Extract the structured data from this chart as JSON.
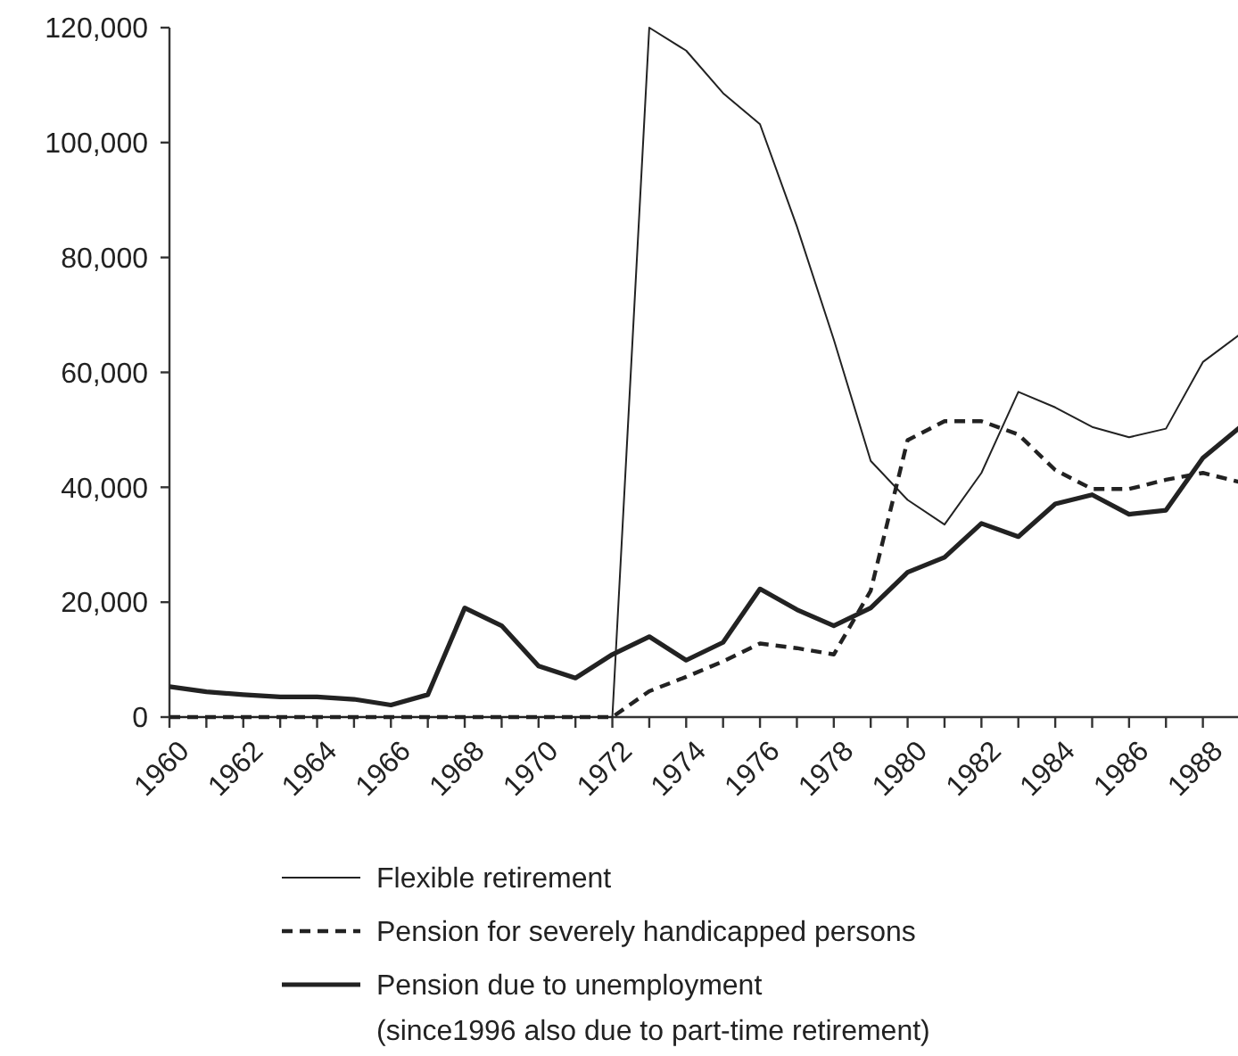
{
  "chart_data": {
    "type": "line",
    "x": [
      1960,
      1961,
      1962,
      1963,
      1964,
      1965,
      1966,
      1967,
      1968,
      1969,
      1970,
      1971,
      1972,
      1973,
      1974,
      1975,
      1976,
      1977,
      1978,
      1979,
      1980,
      1981,
      1982,
      1983,
      1984,
      1985,
      1986,
      1987,
      1988,
      1989
    ],
    "series": [
      {
        "name": "Flexible retirement",
        "color": "#222222",
        "line_style": "solid",
        "values": [
          0,
          0,
          0,
          0,
          0,
          0,
          0,
          0,
          0,
          0,
          0,
          0,
          0,
          120000,
          116000,
          108600,
          103200,
          85400,
          65700,
          44600,
          37800,
          33500,
          42500,
          56600,
          53900,
          50500,
          48700,
          50200,
          61800,
          66600
        ]
      },
      {
        "name": "Pension for severely handicapped persons",
        "color": "#222222",
        "line_style": "dashed",
        "values": [
          0,
          0,
          0,
          0,
          0,
          0,
          0,
          0,
          0,
          0,
          0,
          0,
          0,
          4500,
          7000,
          9700,
          12800,
          12000,
          10900,
          22000,
          48200,
          51500,
          51500,
          49200,
          43000,
          39700,
          39700,
          41300,
          42500,
          40900
        ]
      },
      {
        "name": "Pension due to unemployment\n(since1996 also due to part-time retirement)",
        "color": "#222222",
        "line_style": "solid",
        "values": [
          5300,
          4400,
          3900,
          3500,
          3500,
          3100,
          2100,
          3900,
          19000,
          15900,
          8900,
          6800,
          10900,
          14000,
          9900,
          13000,
          22300,
          18700,
          15900,
          19000,
          25200,
          27800,
          33700,
          31400,
          37100,
          38700,
          35300,
          36000,
          45100,
          50400
        ]
      }
    ],
    "xlim": [
      1960,
      1989
    ],
    "xticks": [
      1960,
      {
        "value": 1961,
        "label": null
      },
      1962,
      {
        "value": 1963,
        "label": null
      },
      1964,
      {
        "value": 1965,
        "label": null
      },
      1966,
      {
        "value": 1967,
        "label": null
      },
      1968,
      {
        "value": 1969,
        "label": null
      },
      1970,
      {
        "value": 1971,
        "label": null
      },
      1972,
      {
        "value": 1973,
        "label": null
      },
      1974,
      {
        "value": 1975,
        "label": null
      },
      1976,
      {
        "value": 1977,
        "label": null
      },
      1978,
      {
        "value": 1979,
        "label": null
      },
      1980,
      {
        "value": 1981,
        "label": null
      },
      1982,
      {
        "value": 1983,
        "label": null
      },
      1984,
      {
        "value": 1985,
        "label": null
      },
      1986,
      {
        "value": 1987,
        "label": null
      },
      1988,
      {
        "value": 1989,
        "label": null
      }
    ],
    "ylim": [
      0,
      120000
    ],
    "yticks": [
      0,
      {
        "value": 20000,
        "label": "20,000"
      },
      {
        "value": 40000,
        "label": "40,000"
      },
      {
        "value": 60000,
        "label": "60,000"
      },
      {
        "value": 80000,
        "label": "80,000"
      },
      {
        "value": 100000,
        "label": "100,000"
      },
      {
        "value": 120000,
        "label": "120,000"
      }
    ],
    "grid": false,
    "legend": "bottom"
  }
}
